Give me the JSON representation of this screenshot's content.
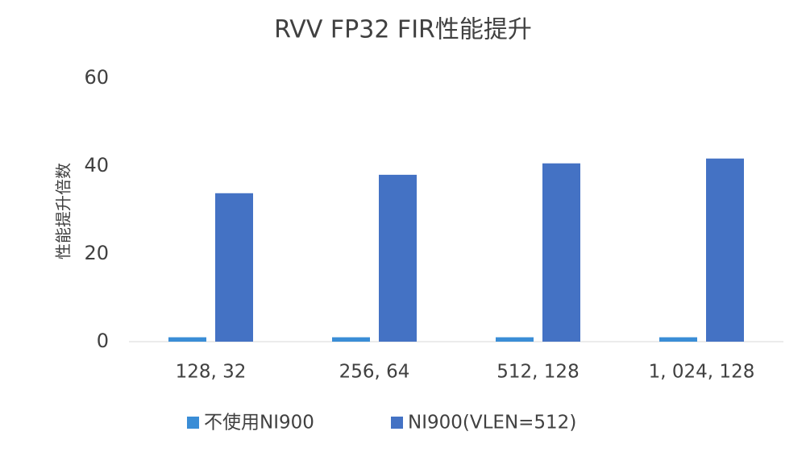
{
  "chart_data": {
    "type": "bar",
    "title": "RVV FP32 FIR性能提升",
    "y_label": "性能提升倍数",
    "categories": [
      "128, 32",
      "256, 64",
      "512, 128",
      "1, 024, 128"
    ],
    "series": [
      {
        "name": "不使用NI900",
        "color": "#3a8dd6",
        "values": [
          1,
          1,
          1,
          1
        ]
      },
      {
        "name": "NI900(VLEN=512)",
        "color": "#4472c4",
        "values": [
          33.8,
          38,
          40.6,
          41.7
        ]
      }
    ],
    "ylim": [
      0,
      60
    ],
    "yticks": [
      0,
      20,
      40,
      60
    ],
    "grid": false,
    "legend": "bottom"
  }
}
